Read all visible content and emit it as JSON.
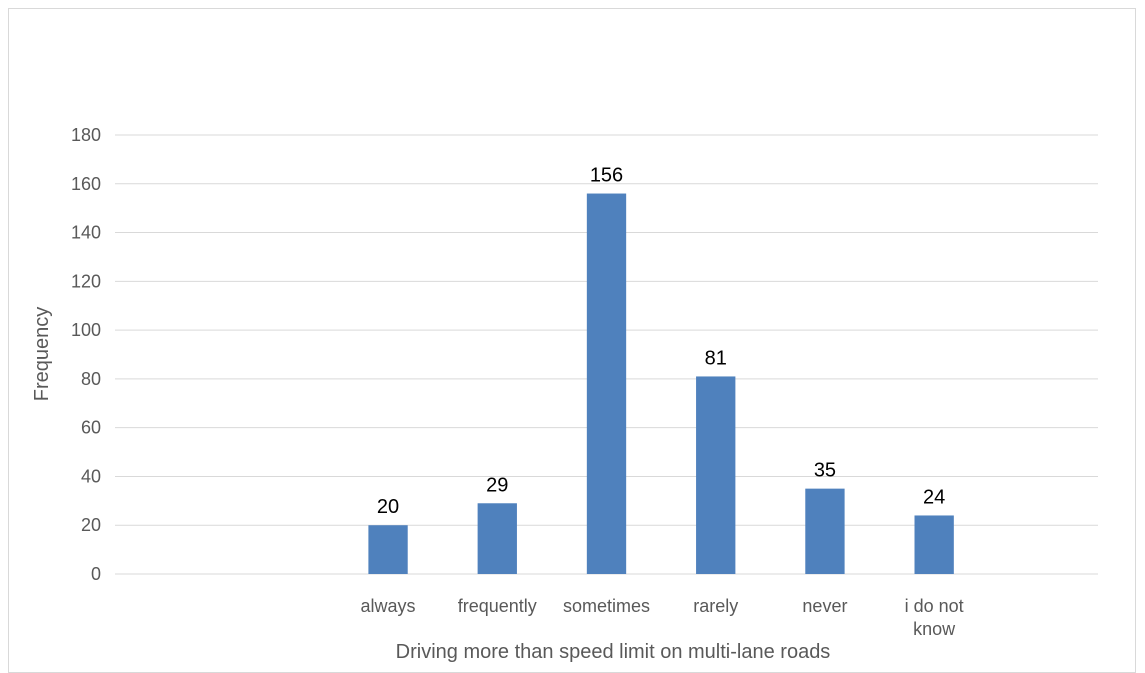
{
  "chart_data": {
    "type": "bar",
    "title": "",
    "xlabel": "Driving more than speed limit on multi-lane roads",
    "ylabel": "Frequency",
    "categories": [
      "",
      "",
      "always",
      "frequently",
      "sometimes",
      "rarely",
      "never",
      "i do not know",
      ""
    ],
    "values": [
      null,
      null,
      20,
      29,
      156,
      81,
      35,
      24,
      null
    ],
    "data_labels": [
      "",
      "",
      "20",
      "29",
      "156",
      "81",
      "35",
      "24",
      ""
    ],
    "ylim": [
      0,
      180
    ],
    "yticks": [
      0,
      20,
      40,
      60,
      80,
      100,
      120,
      140,
      160,
      180
    ],
    "grid": true,
    "legend": "none",
    "bar_color": "#4f81bd",
    "grid_color": "#d9d9d9"
  }
}
